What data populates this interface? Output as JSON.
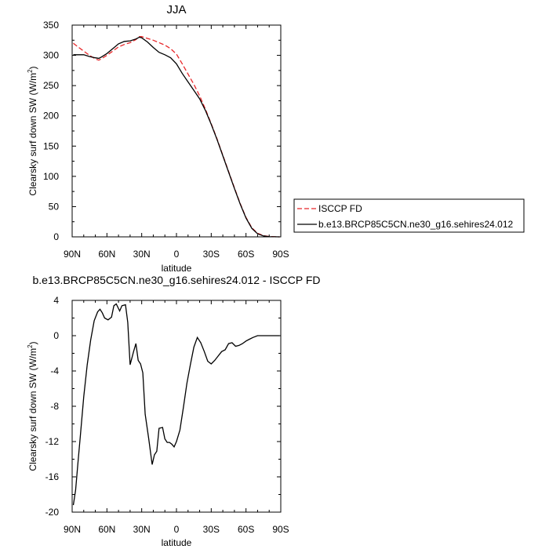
{
  "chart_data": [
    {
      "type": "line",
      "title": "JJA",
      "xlabel": "latitude",
      "ylabel": "Clearsky surf down SW (W/m",
      "ylabel_sup": "2",
      "ylabel_close": ")",
      "xlim": [
        90,
        -90
      ],
      "ylim": [
        0,
        350
      ],
      "xticks": [
        90,
        60,
        30,
        0,
        -30,
        -60,
        -90
      ],
      "xtick_labels": [
        "90N",
        "60N",
        "30N",
        "0",
        "30S",
        "60S",
        "90S"
      ],
      "yticks": [
        0,
        50,
        100,
        150,
        200,
        250,
        300,
        350
      ],
      "ytick_labels": [
        "0",
        "50",
        "100",
        "150",
        "200",
        "250",
        "300",
        "350"
      ],
      "legend_position": "right",
      "series": [
        {
          "name": "ISCCP FD",
          "color": "#e8272a",
          "dash": true,
          "x": [
            89,
            85,
            80,
            75,
            70,
            67,
            65,
            60,
            55,
            50,
            45,
            40,
            35,
            32,
            30,
            25,
            20,
            15,
            10,
            5,
            0,
            -5,
            -10,
            -15,
            -20,
            -25,
            -30,
            -35,
            -40,
            -45,
            -50,
            -55,
            -60,
            -65,
            -70,
            -75,
            -80,
            -85,
            -89
          ],
          "y": [
            320,
            314,
            307,
            300,
            294,
            292,
            294,
            300,
            307,
            314,
            318,
            321,
            326,
            331,
            331,
            328,
            325,
            321,
            317,
            311,
            302,
            286,
            269,
            252,
            233,
            211,
            187,
            162,
            135,
            108,
            81,
            55,
            32,
            15,
            6,
            2,
            0.5,
            0.1,
            0
          ]
        },
        {
          "name": "b.e13.BRCP85C5CN.ne30_g16.sehires24.012",
          "color": "#000000",
          "dash": false,
          "x": [
            89,
            85,
            80,
            75,
            70,
            67,
            65,
            60,
            55,
            50,
            45,
            40,
            35,
            32,
            30,
            25,
            20,
            15,
            10,
            5,
            0,
            -5,
            -10,
            -15,
            -20,
            -25,
            -30,
            -35,
            -40,
            -45,
            -50,
            -55,
            -60,
            -65,
            -70,
            -75,
            -80,
            -85,
            -89
          ],
          "y": [
            301,
            301,
            301,
            298,
            296,
            295,
            297,
            303,
            311,
            319,
            323,
            324,
            327,
            330,
            329,
            322,
            313,
            305,
            301,
            296,
            286,
            270,
            256,
            242,
            228,
            209,
            186,
            161,
            134,
            107,
            80,
            54,
            31,
            14,
            5,
            1.5,
            0.3,
            0.1,
            0
          ]
        }
      ]
    },
    {
      "type": "line",
      "title": "b.e13.BRCP85C5CN.ne30_g16.sehires24.012 - ISCCP FD",
      "xlabel": "latitude",
      "ylabel": "Clearsky surf down SW (W/m",
      "ylabel_sup": "2",
      "ylabel_close": ")",
      "xlim": [
        90,
        -90
      ],
      "ylim": [
        -20,
        4
      ],
      "xticks": [
        90,
        60,
        30,
        0,
        -30,
        -60,
        -90
      ],
      "xtick_labels": [
        "90N",
        "60N",
        "30N",
        "0",
        "30S",
        "60S",
        "90S"
      ],
      "yticks": [
        -20,
        -16,
        -12,
        -8,
        -4,
        0,
        4
      ],
      "ytick_labels": [
        "-20",
        "-16",
        "-12",
        "-8",
        "-4",
        "0",
        "4"
      ],
      "series": [
        {
          "color": "#000000",
          "dash": false,
          "x": [
            89,
            87,
            85,
            83,
            80,
            77,
            74,
            71,
            68,
            66,
            64,
            62,
            59,
            56,
            54,
            52,
            49,
            47,
            44,
            42,
            40,
            37,
            35,
            33,
            31,
            29,
            27,
            24,
            21,
            19,
            17,
            15,
            12,
            10,
            8,
            6,
            4,
            2,
            0,
            -3,
            -6,
            -9,
            -12,
            -15,
            -18,
            -21,
            -24,
            -27,
            -30,
            -33,
            -36,
            -39,
            -42,
            -45,
            -48,
            -51,
            -54,
            -57,
            -60,
            -63,
            -66,
            -70,
            -75,
            -80,
            -85,
            -89
          ],
          "y": [
            -19.2,
            -17.5,
            -14.4,
            -11.5,
            -6.9,
            -3.3,
            -0.5,
            1.7,
            2.7,
            3.0,
            2.6,
            2.0,
            1.8,
            2.1,
            3.4,
            3.6,
            2.8,
            3.4,
            3.5,
            1.5,
            -3.3,
            -1.8,
            -0.9,
            -2.8,
            -3.2,
            -4.2,
            -8.9,
            -11.6,
            -14.6,
            -13.5,
            -13.1,
            -10.5,
            -10.4,
            -11.7,
            -12.1,
            -12.1,
            -12.3,
            -12.6,
            -12.0,
            -10.7,
            -8.1,
            -5.4,
            -3.3,
            -1.3,
            -0.2,
            -0.8,
            -1.8,
            -2.9,
            -3.2,
            -2.8,
            -2.3,
            -1.8,
            -1.6,
            -0.9,
            -0.8,
            -1.2,
            -1.1,
            -0.9,
            -0.6,
            -0.4,
            -0.2,
            0.0,
            0.0,
            0.0,
            0.0,
            0.0
          ]
        }
      ]
    }
  ]
}
